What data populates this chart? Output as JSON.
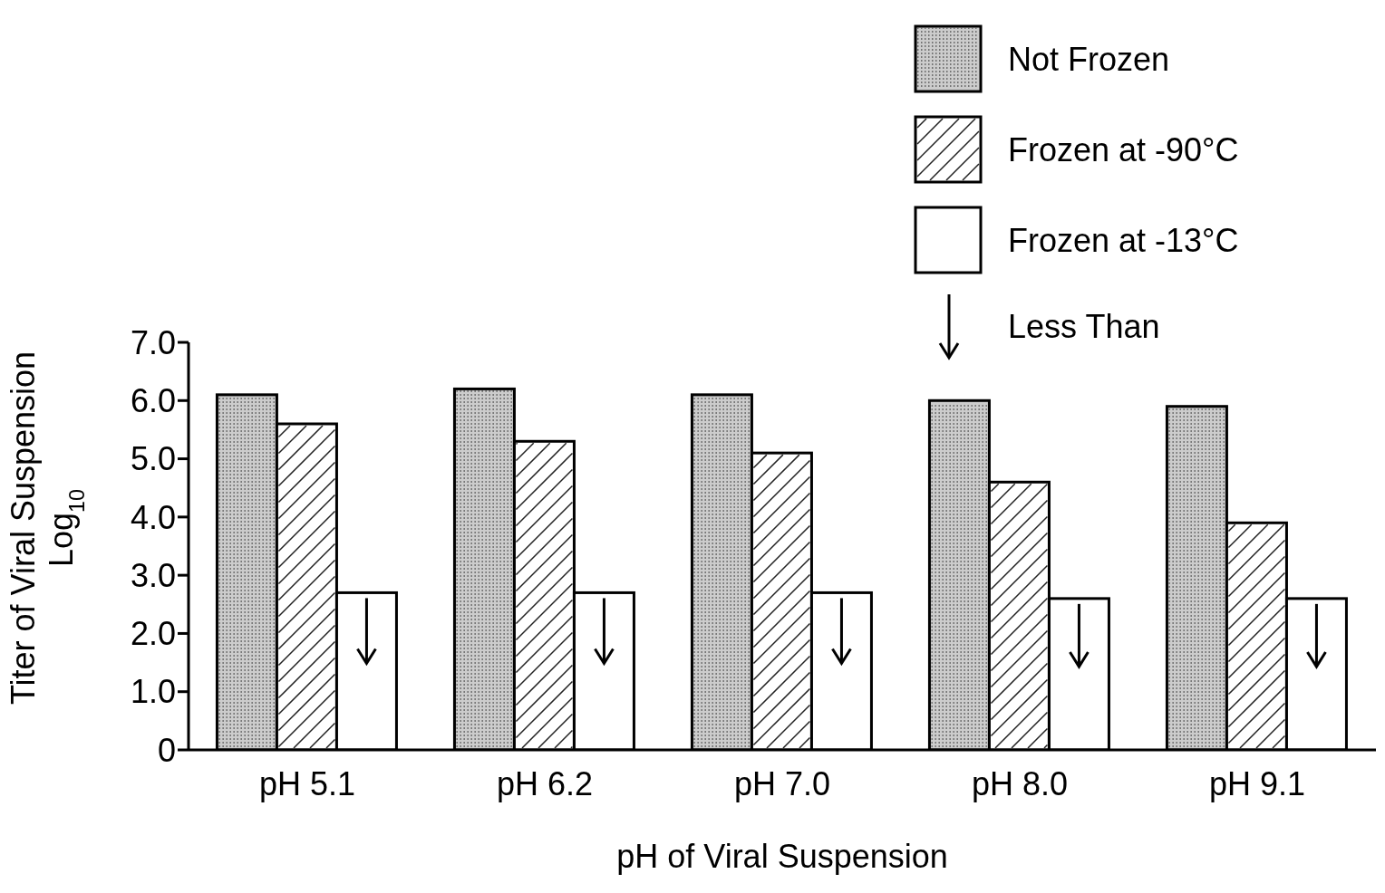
{
  "chart_data": {
    "type": "bar",
    "xlabel": "pH of Viral  Suspension",
    "ylabel": "Titer of Viral Suspension\nLog$_{10}$",
    "categories": [
      "pH 5.1",
      "pH 6.2",
      "pH 7.0",
      "pH 8.0",
      "pH 9.1"
    ],
    "series": [
      {
        "name": "Not Frozen",
        "color": "#cccccc",
        "values": [
          6.1,
          6.2,
          6.1,
          6.0,
          5.9
        ]
      },
      {
        "name": "Frozen at  -90°C",
        "color": "#ffffff",
        "values": [
          5.6,
          5.3,
          5.1,
          4.6,
          3.9
        ]
      },
      {
        "name": "Frozen at  -13°C",
        "color": "#ffffff",
        "values": [
          2.7,
          2.7,
          2.7,
          2.6,
          2.6
        ]
      }
    ],
    "annotations": [
      "Less Than"
    ],
    "ylim": [
      0,
      7
    ],
    "yticks": [
      0,
      {
        "value": 1,
        "label": "1.0"
      },
      {
        "value": 2,
        "label": "2.0"
      },
      {
        "value": 3,
        "label": "3.0"
      },
      {
        "value": 4,
        "label": "4.0"
      },
      {
        "value": 5,
        "label": "5.0"
      },
      {
        "value": 6,
        "label": "6.0"
      },
      {
        "value": 7,
        "label": "7.0"
      }
    ],
    "grid": false,
    "legend": "top right"
  }
}
